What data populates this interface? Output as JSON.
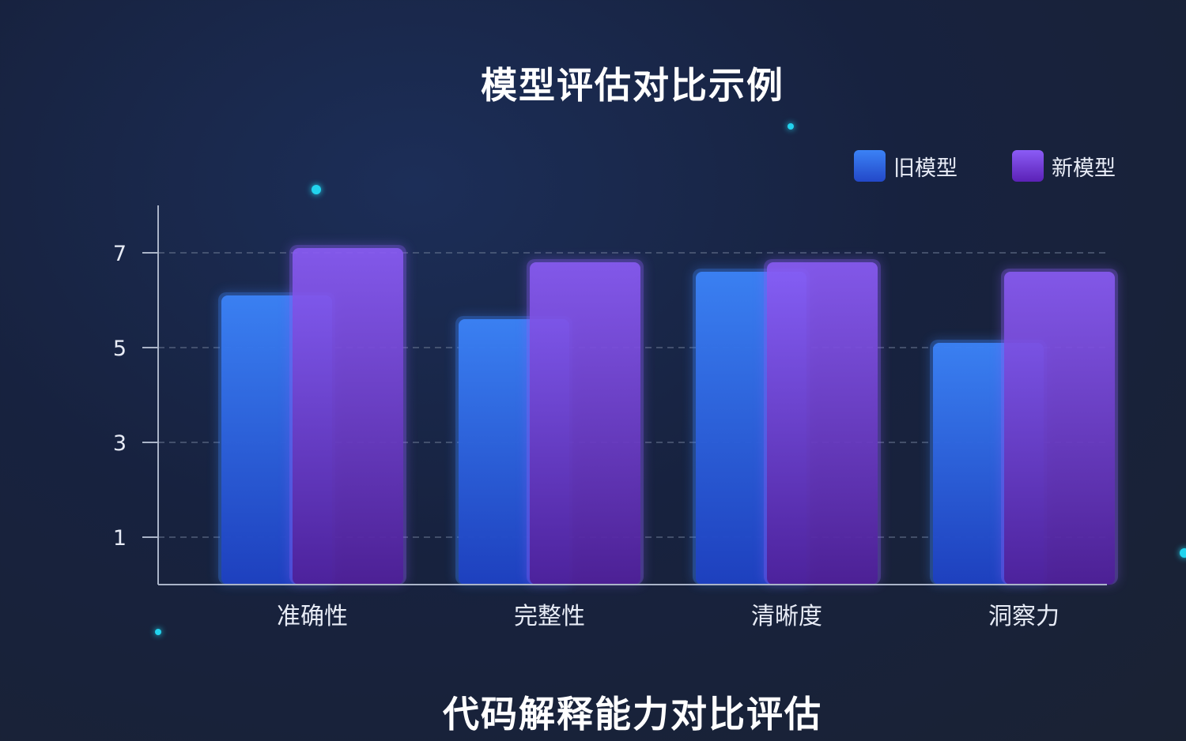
{
  "chart_data": {
    "type": "bar",
    "title": "模型评估对比示例",
    "caption": "代码解释能力对比评估",
    "categories": [
      "准确性",
      "完整性",
      "清晰度",
      "洞察力"
    ],
    "series": [
      {
        "name": "旧模型",
        "values": [
          6.1,
          5.6,
          6.6,
          5.1
        ],
        "color": "#2f6fe0"
      },
      {
        "name": "新模型",
        "values": [
          7.1,
          6.8,
          6.8,
          6.6
        ],
        "color": "#7c3aed"
      }
    ],
    "yticks": [
      "1",
      "3",
      "5",
      "7"
    ],
    "ylim": [
      0,
      8
    ],
    "grid": true,
    "legend_position": "top-right"
  }
}
